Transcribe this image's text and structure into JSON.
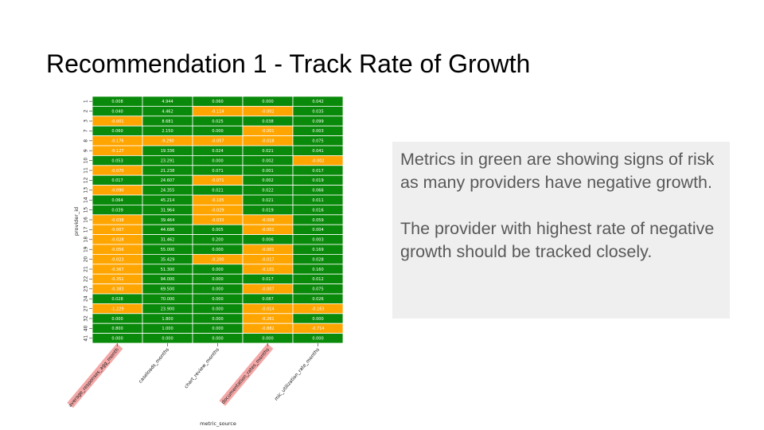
{
  "slide": {
    "title": "Recommendation 1 - Track Rate of Growth"
  },
  "callout": {
    "paragraph_1": "Metrics in green are showing signs of risk as many providers have negative growth.",
    "paragraph_2": "The provider with highest rate of negative growth should be tracked closely."
  },
  "colors": {
    "green": "#0a8a0a",
    "orange": "#ffa500",
    "highlight": "#f4a7a7"
  },
  "chart_data": {
    "type": "heatmap",
    "xlabel": "metric_source",
    "ylabel": "provider_id",
    "columns": [
      "average_responses_agg_month",
      "caseloads_months",
      "chart_review_months",
      "documentation_rates_months",
      "mic_utilization_rate_months"
    ],
    "highlighted_columns": [
      "average_responses_agg_month",
      "documentation_rates_months"
    ],
    "rows": [
      "1",
      "2",
      "3",
      "7",
      "8",
      "9",
      "10",
      "11",
      "12",
      "13",
      "14",
      "15",
      "16",
      "17",
      "18",
      "19",
      "20",
      "21",
      "22",
      "23",
      "24",
      "27",
      "32",
      "40",
      "41"
    ],
    "values": [
      [
        0.008,
        4.944,
        0.06,
        0.0,
        0.042
      ],
      [
        0.04,
        4.462,
        -0.114,
        -0.002,
        0.035
      ],
      [
        -0.001,
        8.681,
        0.025,
        0.038,
        0.099
      ],
      [
        0.06,
        2.15,
        0.0,
        -0.001,
        0.003
      ],
      [
        -0.176,
        -9.29,
        -0.057,
        -0.018,
        0.075
      ],
      [
        -0.127,
        19.336,
        0.024,
        0.021,
        0.041
      ],
      [
        0.053,
        23.291,
        0.0,
        0.002,
        -0.002
      ],
      [
        -0.07,
        21.238,
        0.071,
        0.001,
        0.017
      ],
      [
        0.017,
        24.607,
        -0.071,
        0.002,
        0.019
      ],
      [
        -0.09,
        24.355,
        0.021,
        0.022,
        0.066
      ],
      [
        0.064,
        45.214,
        -0.105,
        0.021,
        0.011
      ],
      [
        0.039,
        31.964,
        -0.029,
        0.019,
        0.016
      ],
      [
        -0.038,
        39.464,
        -0.033,
        -0.008,
        0.059
      ],
      [
        -0.007,
        44.686,
        0.005,
        -0.001,
        0.004
      ],
      [
        -0.028,
        31.462,
        0.2,
        0.006,
        0.003
      ],
      [
        -0.056,
        55.0,
        0.0,
        -0.001,
        0.169
      ],
      [
        -0.023,
        35.429,
        -0.2,
        -0.017,
        0.028
      ],
      [
        -0.367,
        51.3,
        0.0,
        -0.101,
        0.16
      ],
      [
        -0.351,
        94.0,
        0.0,
        0.017,
        0.012
      ],
      [
        -0.383,
        69.5,
        0.0,
        -0.007,
        0.075
      ],
      [
        0.028,
        70.0,
        0.0,
        0.087,
        0.026
      ],
      [
        -1.229,
        23.9,
        0.0,
        -0.014,
        -0.163
      ],
      [
        0.0,
        1.8,
        0.0,
        -0.261,
        0.0
      ],
      [
        0.8,
        1.0,
        0.0,
        -0.882,
        -0.714
      ],
      [
        0.0,
        0.0,
        0.0,
        0.0,
        0.0
      ]
    ]
  }
}
